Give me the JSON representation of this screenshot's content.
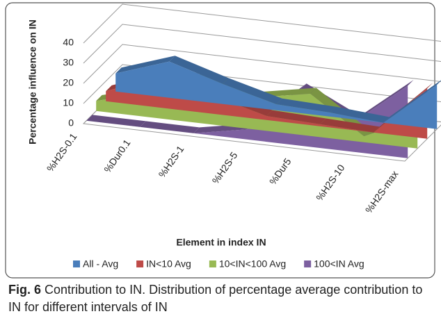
{
  "chart_data": {
    "type": "area3d",
    "x_label": "Element in index IN",
    "y_label": "Percentage influence on IN",
    "categories": [
      "%H2S-0.1",
      "%Dur0.1",
      "%H2S-1",
      "%H2S-5",
      "%Dur5",
      "%H2S-10",
      "%H2S-max"
    ],
    "series": [
      {
        "name": "All - Avg",
        "color": "#4a7ebb",
        "values": [
          9,
          18,
          10,
          3,
          2,
          0,
          22
        ]
      },
      {
        "name": "IN<10 Avg",
        "color": "#be4b48",
        "values": [
          5,
          15,
          9,
          2,
          1,
          0,
          25
        ]
      },
      {
        "name": "10<IN<100 Avg",
        "color": "#98b954",
        "values": [
          5,
          12,
          23,
          16,
          21,
          3,
          15
        ]
      },
      {
        "name": "100<IN Avg",
        "color": "#7d60a0",
        "values": [
          0,
          0,
          0,
          5,
          28,
          15,
          36
        ]
      }
    ],
    "ylim": [
      0,
      40
    ],
    "yticks": [
      0,
      10,
      20,
      30,
      40
    ],
    "grid": true,
    "legend": "bottom"
  },
  "caption": {
    "label": "Fig. 6",
    "text": "Contribution to IN. Distribution of percentage average contribution to IN for different intervals of IN"
  }
}
